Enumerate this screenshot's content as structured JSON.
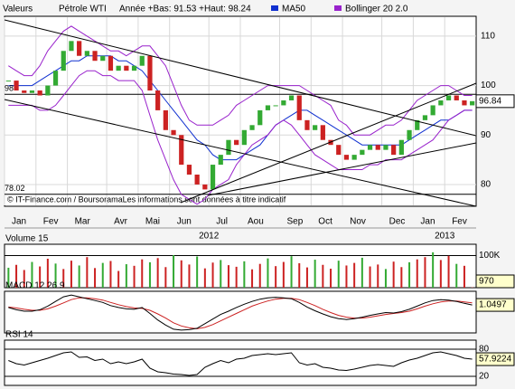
{
  "chart_data": [
    {
      "type": "candlestick",
      "header_left": "Valeurs",
      "title": "Pétrole WTI",
      "subtitle": "Année +Bas: 91.53 +Haut: 98.24",
      "source": "© IT-Finance.com / BoursoramaLes informations sont données à titre indicatif",
      "categories": [
        "Jan",
        null,
        null,
        null,
        "Fev",
        null,
        null,
        null,
        "Mar",
        null,
        null,
        null,
        null,
        "Avr",
        null,
        null,
        null,
        "Mai",
        null,
        null,
        null,
        "Jun",
        null,
        null,
        null,
        null,
        "Jul",
        null,
        null,
        null,
        "Aou",
        null,
        null,
        null,
        null,
        "Sep",
        null,
        null,
        null,
        "Oct",
        null,
        null,
        null,
        "Nov",
        null,
        null,
        null,
        null,
        "Dec",
        null,
        null,
        null,
        "Jan",
        null,
        null,
        null,
        "Fev",
        null,
        null,
        null
      ],
      "years": [
        "2012",
        "2013"
      ],
      "close": [
        101,
        99,
        98.5,
        99,
        98,
        100,
        103,
        107,
        109,
        106,
        107,
        105,
        106,
        103,
        104,
        103,
        104,
        106,
        99,
        95,
        91,
        90,
        84,
        82,
        80,
        79,
        84,
        86,
        89,
        88,
        91,
        92,
        95,
        96,
        96,
        97,
        98,
        93,
        91,
        92,
        89,
        88,
        86,
        85,
        86,
        87,
        88,
        87,
        88,
        86,
        89,
        91,
        93,
        94,
        96,
        97,
        98,
        97,
        96,
        96.84
      ],
      "up_color": "#33aa33",
      "down_color": "#cc2222",
      "series": [
        {
          "name": "MA50",
          "color": "#1030d0",
          "values": [
            100,
            100,
            100,
            100,
            101,
            102,
            103,
            104,
            105,
            105,
            106,
            106,
            106,
            106,
            105,
            105,
            104,
            103,
            101,
            99,
            97,
            95,
            93,
            91,
            89,
            88,
            86,
            85,
            85,
            85,
            86,
            87,
            88,
            90,
            92,
            93,
            94,
            95,
            95,
            94,
            93,
            92,
            91,
            90,
            89,
            88,
            88,
            88,
            88,
            88,
            88,
            89,
            90,
            91,
            92,
            93,
            93,
            94,
            95,
            95
          ]
        },
        {
          "name": "Bollinger 20 2.0",
          "color": "#9922cc",
          "upper": [
            104,
            103,
            102,
            102,
            104,
            107,
            109,
            111,
            112,
            111,
            110,
            109,
            108,
            107,
            107,
            106,
            107,
            108,
            108,
            106,
            104,
            100,
            96,
            93,
            92,
            92,
            92,
            93,
            94,
            96,
            97,
            98,
            99,
            100,
            100,
            100,
            100,
            100,
            99,
            98,
            97,
            96,
            93,
            92,
            90,
            90,
            90,
            91,
            92,
            92,
            93,
            95,
            97,
            98,
            99,
            100,
            100,
            99,
            98,
            98
          ],
          "lower": [
            96,
            96,
            96,
            96,
            95,
            95,
            96,
            98,
            100,
            102,
            103,
            103,
            102,
            102,
            101,
            101,
            101,
            99,
            94,
            89,
            85,
            81,
            78,
            77,
            76,
            77,
            79,
            80,
            81,
            84,
            86,
            88,
            89,
            90,
            92,
            93,
            92,
            90,
            88,
            86,
            85,
            84,
            83,
            83,
            83,
            83,
            84,
            84,
            85,
            85,
            85,
            86,
            87,
            88,
            89,
            91,
            93,
            94,
            95,
            95
          ]
        }
      ],
      "levels": [
        {
          "value": 98.24,
          "label": "98"
        },
        {
          "value": 78.02,
          "label": "78.02"
        }
      ],
      "ylim": [
        75.6,
        114
      ],
      "yticks": [
        80,
        90,
        100,
        110
      ],
      "grid": true
    },
    {
      "type": "bar",
      "title": "Volume 15",
      "color": "#cc2222",
      "values": [
        62000,
        71000,
        55000,
        80000,
        66000,
        90000,
        75000,
        58000,
        84000,
        69000,
        95000,
        61000,
        77000,
        83000,
        52000,
        73000,
        68000,
        88000,
        79000,
        92000,
        64000,
        101000,
        85000,
        72000,
        97000,
        60000,
        78000,
        86000,
        70000,
        65000,
        82000,
        57000,
        74000,
        91000,
        67000,
        80000,
        98000,
        76000,
        63000,
        87000,
        71000,
        59000,
        84000,
        69000,
        77000,
        93000,
        66000,
        72000,
        58000,
        81000,
        64000,
        79000,
        88000,
        95000,
        110000,
        86000,
        99000,
        74000,
        68000,
        970
      ],
      "ylim": [
        0,
        135000
      ],
      "yticks": [
        {
          "value": 100000,
          "label": "100K"
        }
      ]
    },
    {
      "type": "line",
      "title": "MACD 12 26 9",
      "color": "#000000",
      "signal_color": "#cc2222",
      "values": [
        0.5,
        0,
        -0.3,
        -0.3,
        0,
        0.8,
        1.8,
        2.8,
        3.2,
        2.8,
        2.4,
        2,
        1.6,
        0.9,
        0.5,
        0.2,
        0.1,
        0.5,
        -0.8,
        -2.2,
        -3.3,
        -4.2,
        -4.4,
        -4.3,
        -4,
        -3,
        -2,
        -1,
        -0.3,
        0.5,
        1.2,
        1.8,
        2.3,
        2.6,
        2.7,
        2.6,
        2.4,
        1.6,
        0.6,
        -0.2,
        -0.9,
        -1.5,
        -1.9,
        -2.1,
        -1.9,
        -1.6,
        -1.2,
        -0.9,
        -0.6,
        -0.7,
        -0.4,
        0.1,
        0.8,
        1.5,
        2,
        2.2,
        2.1,
        1.8,
        1.4,
        1.0497
      ],
      "signal": [
        0.6,
        0.4,
        0.1,
        -0.1,
        -0.1,
        0.2,
        0.8,
        1.5,
        2.2,
        2.6,
        2.6,
        2.4,
        2.1,
        1.6,
        1.1,
        0.7,
        0.4,
        0.3,
        -0.1,
        -0.9,
        -1.8,
        -2.8,
        -3.5,
        -3.9,
        -4.1,
        -3.8,
        -3.2,
        -2.4,
        -1.6,
        -0.8,
        0,
        0.8,
        1.4,
        1.9,
        2.3,
        2.5,
        2.5,
        2.2,
        1.6,
        0.9,
        0.1,
        -0.6,
        -1.2,
        -1.6,
        -1.8,
        -1.8,
        -1.6,
        -1.3,
        -1,
        -0.8,
        -0.6,
        -0.3,
        0.2,
        0.8,
        1.3,
        1.7,
        1.9,
        1.9,
        1.7,
        1.5
      ],
      "ylim": [
        -5,
        4
      ]
    },
    {
      "type": "line",
      "title": "RSI 14",
      "color": "#000000",
      "values": [
        55,
        48,
        45,
        50,
        55,
        60,
        66,
        72,
        74,
        62,
        63,
        55,
        58,
        48,
        52,
        48,
        52,
        58,
        38,
        30,
        28,
        25,
        24,
        22,
        24,
        40,
        48,
        55,
        50,
        58,
        60,
        66,
        68,
        70,
        68,
        70,
        72,
        50,
        45,
        48,
        40,
        38,
        34,
        33,
        36,
        40,
        44,
        46,
        44,
        42,
        50,
        56,
        60,
        66,
        72,
        74,
        70,
        66,
        60,
        57.9224
      ],
      "ylim": [
        0,
        100
      ],
      "yticks": [
        20,
        80
      ]
    }
  ]
}
